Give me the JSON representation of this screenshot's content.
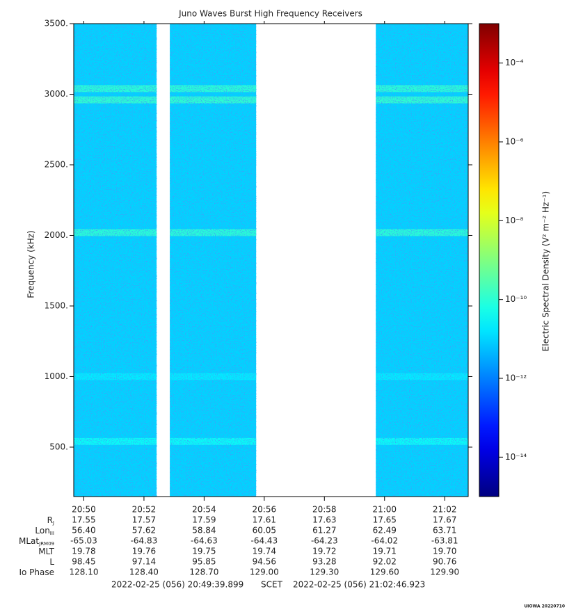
{
  "chart_data": {
    "type": "spectrogram",
    "title": "Juno Waves Burst High Frequency Receivers",
    "ylabel": "Frequency (kHz)",
    "zlabel": "Electric Spectral Density (V² m⁻² Hz⁻¹)",
    "xlim": [
      1249.665,
      1262.782
    ],
    "xticks": [
      {
        "value": 1250,
        "label": "20:50"
      },
      {
        "value": 1252,
        "label": "20:52"
      },
      {
        "value": 1254,
        "label": "20:54"
      },
      {
        "value": 1256,
        "label": "20:56"
      },
      {
        "value": 1258,
        "label": "20:58"
      },
      {
        "value": 1260,
        "label": "21:00"
      },
      {
        "value": 1262,
        "label": "21:02"
      }
    ],
    "ylim": [
      150,
      3500
    ],
    "yticks": [
      {
        "value": 500,
        "label": "500."
      },
      {
        "value": 1000,
        "label": "1000."
      },
      {
        "value": 1500,
        "label": "1500."
      },
      {
        "value": 2000,
        "label": "2000."
      },
      {
        "value": 2500,
        "label": "2500."
      },
      {
        "value": 3000,
        "label": "3000."
      },
      {
        "value": 3500,
        "label": "3500."
      }
    ],
    "zscale": "log",
    "colormap": "jet",
    "zlim": [
      1e-15,
      0.001
    ],
    "zticks": [
      {
        "value": 1e-14,
        "label": "10⁻¹⁴"
      },
      {
        "value": 1e-12,
        "label": "10⁻¹²"
      },
      {
        "value": 1e-10,
        "label": "10⁻¹⁰"
      },
      {
        "value": 1e-08,
        "label": "10⁻⁸"
      },
      {
        "value": 1e-06,
        "label": "10⁻⁶"
      },
      {
        "value": 0.0001,
        "label": "10⁻⁴"
      }
    ],
    "segments": [
      {
        "start": 1249.665,
        "end": 1252.42
      },
      {
        "start": 1252.86,
        "end": 1255.73
      },
      {
        "start": 1259.71,
        "end": 1262.782
      }
    ],
    "background_level": 1e-11,
    "bands": [
      {
        "frequency": 3040,
        "level": 1e-10
      },
      {
        "frequency": 2960,
        "level": 1.2e-10
      },
      {
        "frequency": 2020,
        "level": 1e-10
      },
      {
        "frequency": 1000,
        "level": 2e-11
      },
      {
        "frequency": 540,
        "level": 4e-11
      }
    ],
    "ephemeris": [
      {
        "name": "R",
        "sub": "J",
        "values": [
          "17.55",
          "17.57",
          "17.59",
          "17.61",
          "17.63",
          "17.65",
          "17.67"
        ]
      },
      {
        "name": "Lon",
        "sub": "III",
        "values": [
          "56.40",
          "57.62",
          "58.84",
          "60.05",
          "61.27",
          "62.49",
          "63.71"
        ]
      },
      {
        "name": "MLat",
        "sub": "JRM09",
        "values": [
          "-65.03",
          "-64.83",
          "-64.63",
          "-64.43",
          "-64.23",
          "-64.02",
          "-63.81"
        ]
      },
      {
        "name": "MLT",
        "values": [
          "19.78",
          "19.76",
          "19.75",
          "19.74",
          "19.72",
          "19.71",
          "19.70"
        ]
      },
      {
        "name": "L",
        "values": [
          "98.45",
          "97.14",
          "95.85",
          "94.56",
          "93.28",
          "92.02",
          "90.76"
        ]
      },
      {
        "name": "Io Phase",
        "values": [
          "128.10",
          "128.40",
          "128.70",
          "129.00",
          "129.30",
          "129.60",
          "129.90"
        ]
      }
    ],
    "start_time": "2022-02-25 (056) 20:49:39.899",
    "time_label": "SCET",
    "end_time": "2022-02-25 (056) 21:02:46.923",
    "credit": "UIOWA 20220710"
  }
}
